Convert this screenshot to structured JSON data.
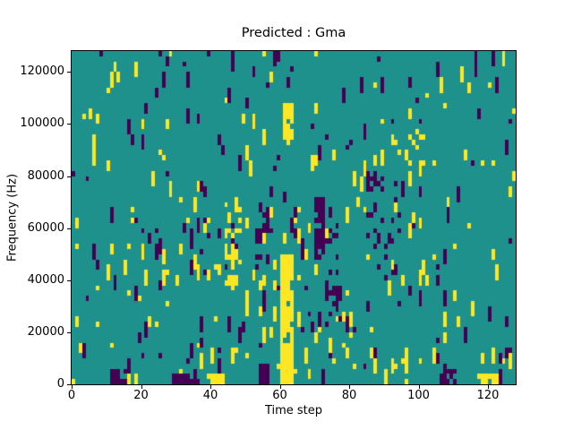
{
  "chart_data": {
    "type": "heatmap",
    "title": "Predicted : Gma",
    "xlabel": "Time step",
    "ylabel": "Frequency (Hz)",
    "xlim": [
      0,
      128
    ],
    "ylim": [
      0,
      128000
    ],
    "x_ticks": [
      0,
      20,
      40,
      60,
      80,
      100,
      120
    ],
    "y_ticks": [
      0,
      20000,
      40000,
      60000,
      80000,
      100000,
      120000
    ],
    "grid": {
      "cols": 128,
      "rows": 64,
      "hz_per_row": 2000,
      "grid_lines": false,
      "legend": "none"
    },
    "colors": {
      "mid_class": "#1f918d",
      "low_class": "#440154",
      "high_class": "#fde725",
      "axes_edge": "#000000",
      "text": "#000000",
      "figure_background": "#ffffff"
    },
    "pattern": {
      "seed": 7,
      "yellow_start_prob": 0.02,
      "purple_start_prob": 0.02,
      "run_min": 1,
      "run_max": 3,
      "row_bands": [
        {
          "r0": 0,
          "r1": 5,
          "mult": 1.7
        },
        {
          "r0": 6,
          "r1": 31,
          "mult": 1.25
        },
        {
          "r0": 32,
          "r1": 63,
          "mult": 0.95
        }
      ],
      "features": [
        {
          "name": "yellow-band-low",
          "c0": 60,
          "c1": 63,
          "r0": 0,
          "r1": 24,
          "color": "high",
          "p": 0.93
        },
        {
          "name": "band-hole",
          "c0": 61,
          "c1": 62,
          "r0": 8,
          "r1": 9,
          "color": "mid",
          "p": 0.8
        },
        {
          "name": "yellow-cluster-high",
          "c0": 61,
          "c1": 63,
          "r0": 46,
          "r1": 53,
          "color": "high",
          "p": 0.8
        },
        {
          "name": "purple-streak-center",
          "c0": 70,
          "c1": 72,
          "r0": 24,
          "r1": 35,
          "color": "low",
          "p": 0.85
        },
        {
          "name": "purple-right-of-center",
          "c0": 73,
          "c1": 76,
          "r0": 10,
          "r1": 30,
          "color": "low",
          "p": 0.22
        },
        {
          "name": "yellow-left-mid",
          "c0": 44,
          "c1": 48,
          "r0": 16,
          "r1": 34,
          "color": "high",
          "p": 0.3
        },
        {
          "name": "purple-mid-col",
          "c0": 53,
          "c1": 56,
          "r0": 22,
          "r1": 34,
          "color": "low",
          "p": 0.28
        },
        {
          "name": "yellow-bottom-mid",
          "c0": 39,
          "c1": 43,
          "r0": 0,
          "r1": 1,
          "color": "high",
          "p": 0.9
        },
        {
          "name": "purple-bottom-left",
          "c0": 11,
          "c1": 15,
          "r0": 0,
          "r1": 2,
          "color": "low",
          "p": 0.8
        },
        {
          "name": "yellow-bottom-left",
          "c0": 16,
          "c1": 19,
          "r0": 0,
          "r1": 1,
          "color": "high",
          "p": 0.55
        },
        {
          "name": "purple-bottom-mid",
          "c0": 29,
          "c1": 35,
          "r0": 0,
          "r1": 1,
          "color": "low",
          "p": 0.7
        },
        {
          "name": "purple-bottom-c55",
          "c0": 54,
          "c1": 56,
          "r0": 0,
          "r1": 3,
          "color": "low",
          "p": 0.8
        },
        {
          "name": "purple-bottom-right",
          "c0": 106,
          "c1": 110,
          "r0": 0,
          "r1": 2,
          "color": "low",
          "p": 0.75
        },
        {
          "name": "yellow-bottom-right",
          "c0": 117,
          "c1": 122,
          "r0": 0,
          "r1": 1,
          "color": "high",
          "p": 0.85
        },
        {
          "name": "yellow-col-118",
          "c0": 118,
          "c1": 118,
          "r0": 0,
          "r1": 5,
          "color": "high",
          "p": 0.9
        },
        {
          "name": "yellow-col-107",
          "c0": 107,
          "c1": 107,
          "r0": 8,
          "r1": 13,
          "color": "high",
          "p": 0.9
        },
        {
          "name": "yellow-right-high",
          "c0": 97,
          "c1": 101,
          "r0": 40,
          "r1": 48,
          "color": "high",
          "p": 0.25
        },
        {
          "name": "purple-right-mid",
          "c0": 85,
          "c1": 93,
          "r0": 18,
          "r1": 40,
          "color": "low",
          "p": 0.12
        }
      ]
    }
  }
}
